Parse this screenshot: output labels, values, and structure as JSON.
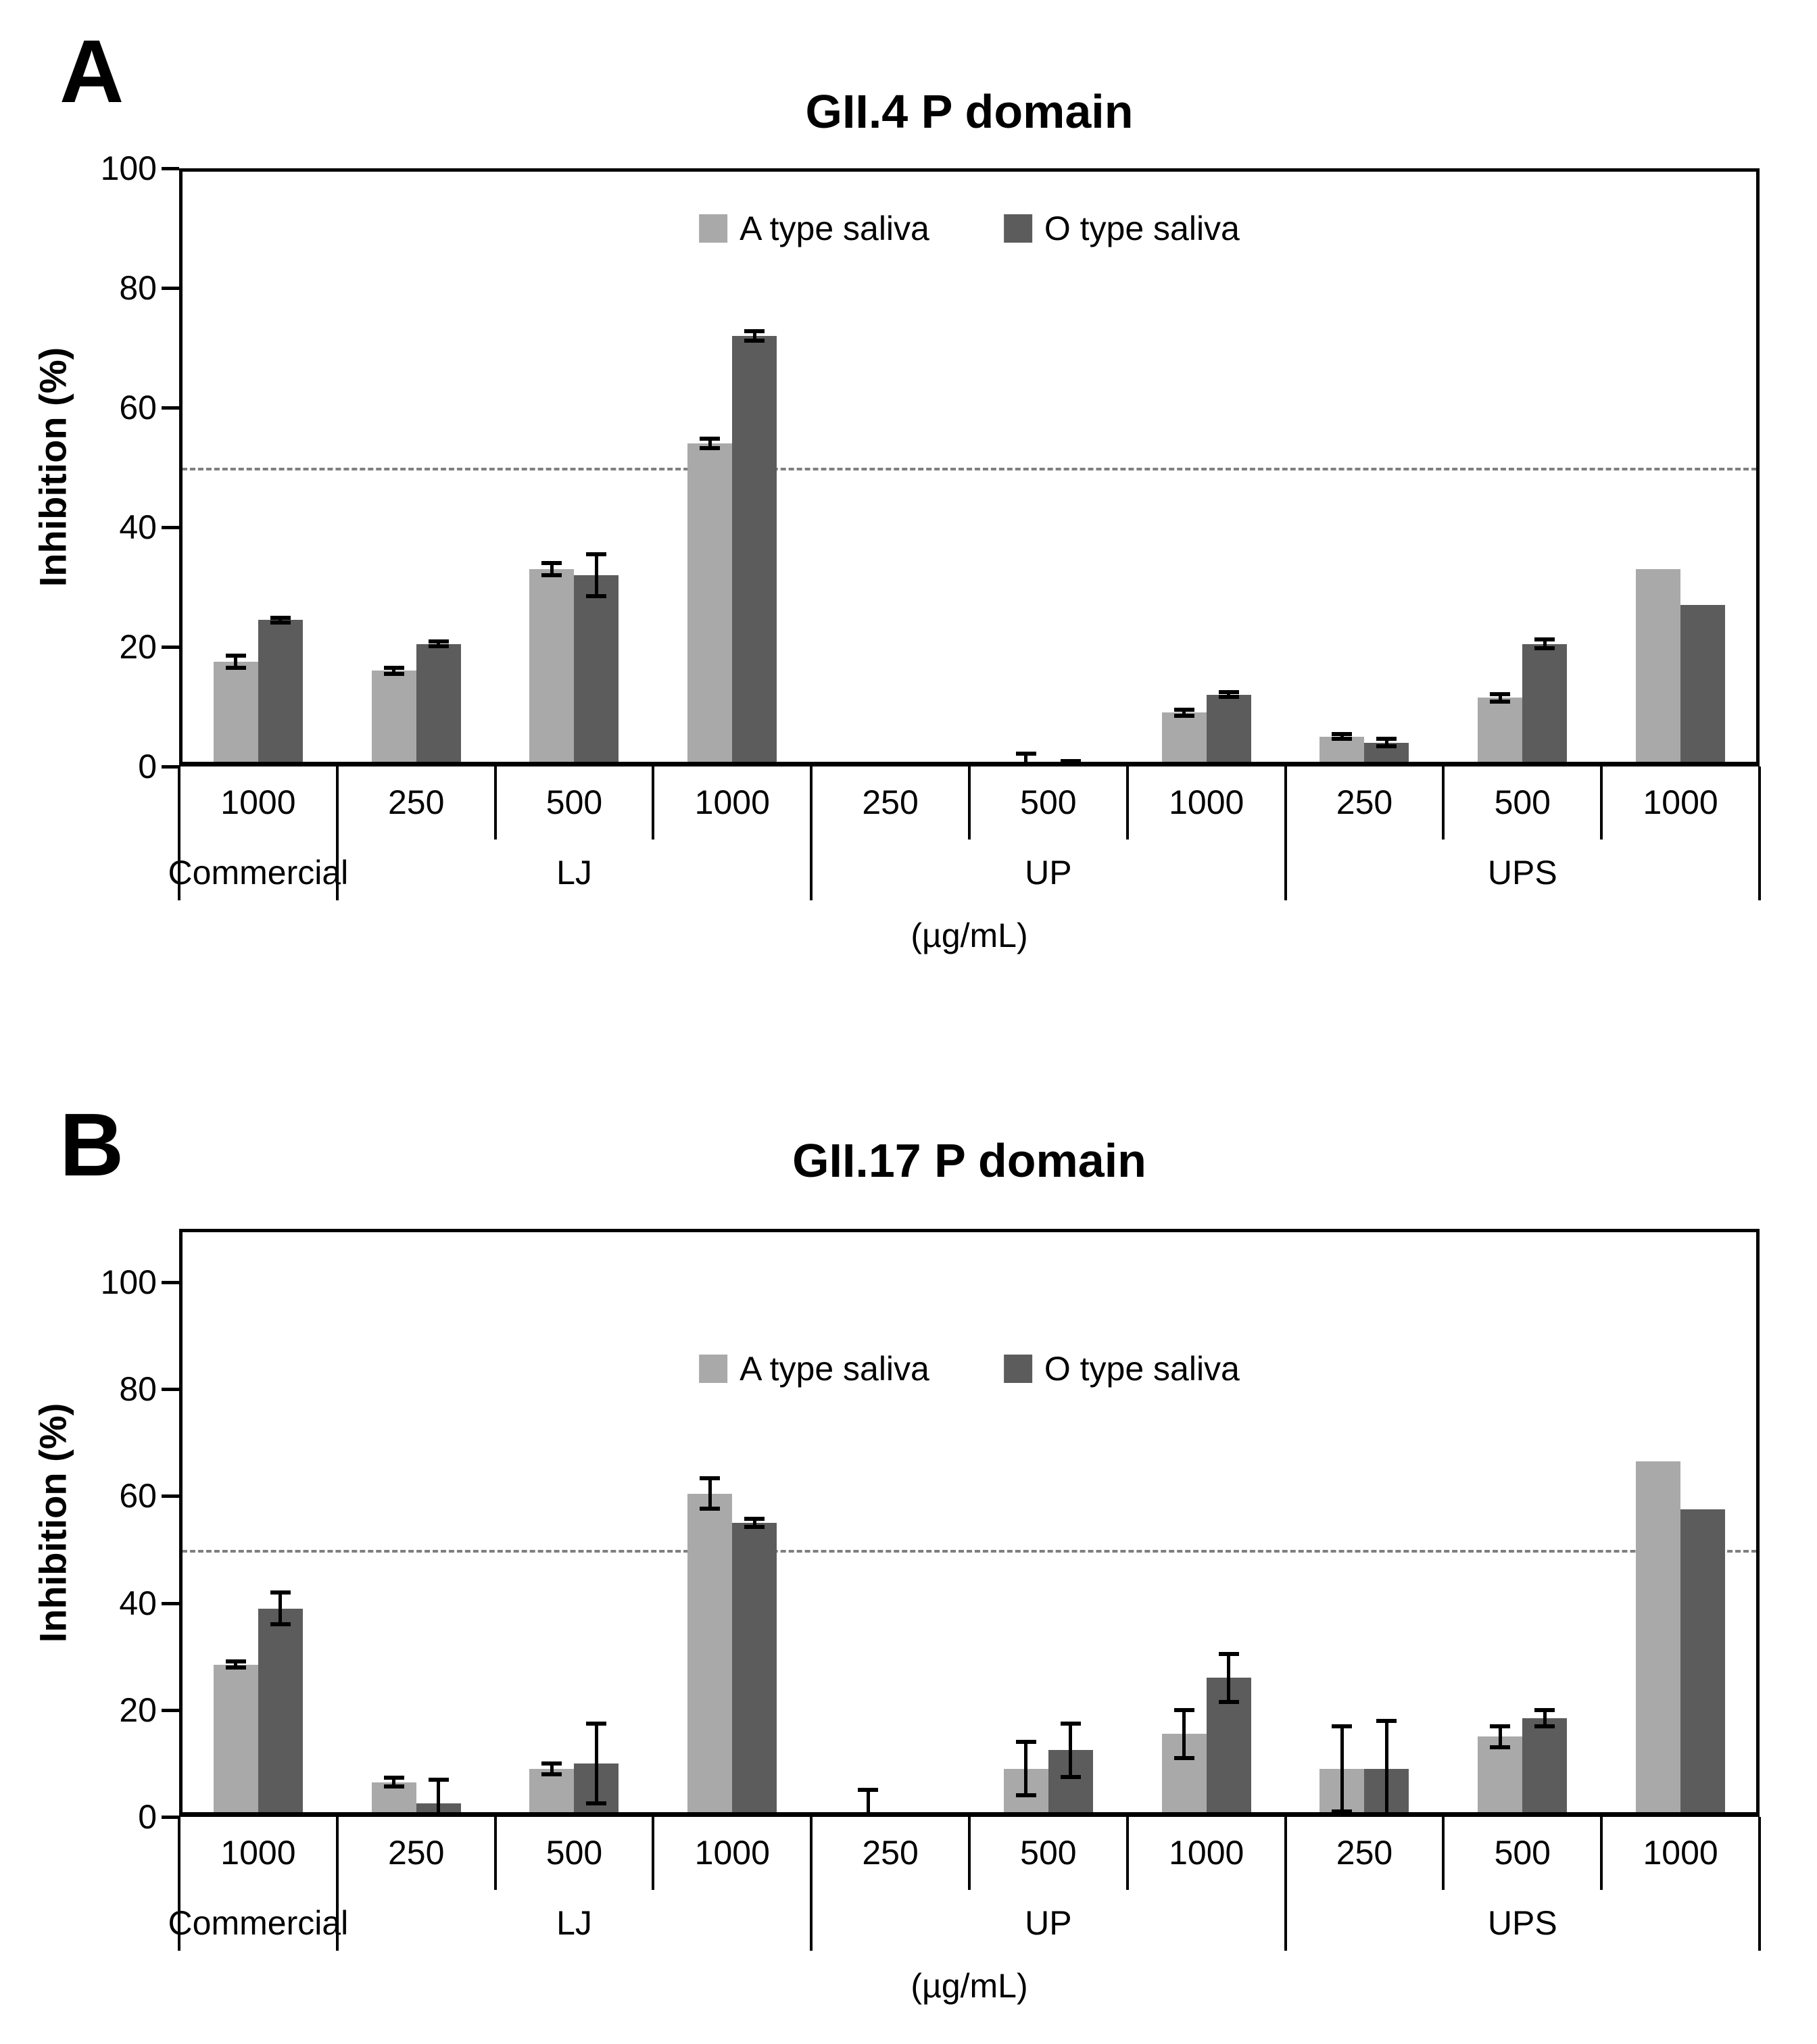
{
  "chart_data": [
    {
      "panel_label": "A",
      "type": "bar",
      "title": "GII.4 P domain",
      "ylabel": "Inhibition (%)",
      "xlabel": "(µg/mL)",
      "ylim": [
        0,
        100
      ],
      "yticks": [
        0,
        20,
        40,
        60,
        80,
        100
      ],
      "grid": "off",
      "dashed_reference_line_y": 50,
      "legend_position": "top-center",
      "groups": [
        {
          "name": "Commercial",
          "concentrations": [
            "1000"
          ]
        },
        {
          "name": "LJ",
          "concentrations": [
            "250",
            "500",
            "1000"
          ]
        },
        {
          "name": "UP",
          "concentrations": [
            "250",
            "500",
            "1000"
          ]
        },
        {
          "name": "UPS",
          "concentrations": [
            "250",
            "500",
            "1000"
          ]
        }
      ],
      "series": [
        {
          "name": "A type saliva",
          "color": "#a9a9a9",
          "values": [
            17.5,
            16,
            33,
            54,
            0,
            0,
            9,
            5,
            11.5,
            33
          ],
          "errors": [
            1,
            0.5,
            1,
            0.8,
            0,
            2.2,
            0.5,
            0.4,
            0.6,
            0
          ]
        },
        {
          "name": "O type saliva",
          "color": "#5c5c5c",
          "values": [
            24.5,
            20.5,
            32,
            72,
            0,
            0,
            12,
            4,
            20.5,
            27
          ],
          "errors": [
            0.4,
            0.4,
            3.5,
            0.8,
            0,
            0.9,
            0.4,
            0.6,
            0.7,
            0
          ]
        }
      ]
    },
    {
      "panel_label": "B",
      "type": "bar",
      "title": "GII.17 P domain",
      "ylabel": "Inhibition (%)",
      "xlabel": "(µg/mL)",
      "ylim": [
        0,
        100
      ],
      "yticks": [
        0,
        20,
        40,
        60,
        80,
        100
      ],
      "grid": "off",
      "dashed_reference_line_y": 50,
      "legend_position": "top-center",
      "groups": [
        {
          "name": "Commercial",
          "concentrations": [
            "1000"
          ]
        },
        {
          "name": "LJ",
          "concentrations": [
            "250",
            "500",
            "1000"
          ]
        },
        {
          "name": "UP",
          "concentrations": [
            "250",
            "500",
            "1000"
          ]
        },
        {
          "name": "UPS",
          "concentrations": [
            "250",
            "500",
            "1000"
          ]
        }
      ],
      "series": [
        {
          "name": "A type saliva",
          "color": "#a9a9a9",
          "values": [
            28.5,
            6.5,
            9,
            60.5,
            0,
            9,
            15.5,
            9,
            15,
            66.5
          ],
          "errors": [
            0.6,
            0.8,
            1,
            2.8,
            5,
            5,
            4.5,
            8,
            2,
            0
          ]
        },
        {
          "name": "O type saliva",
          "color": "#5c5c5c",
          "values": [
            39,
            2.5,
            10,
            55,
            0,
            12.5,
            26,
            9,
            18.5,
            57.5
          ],
          "errors": [
            3,
            4.5,
            7.5,
            0.8,
            0,
            5,
            4.5,
            9,
            1.5,
            0
          ]
        }
      ]
    }
  ]
}
